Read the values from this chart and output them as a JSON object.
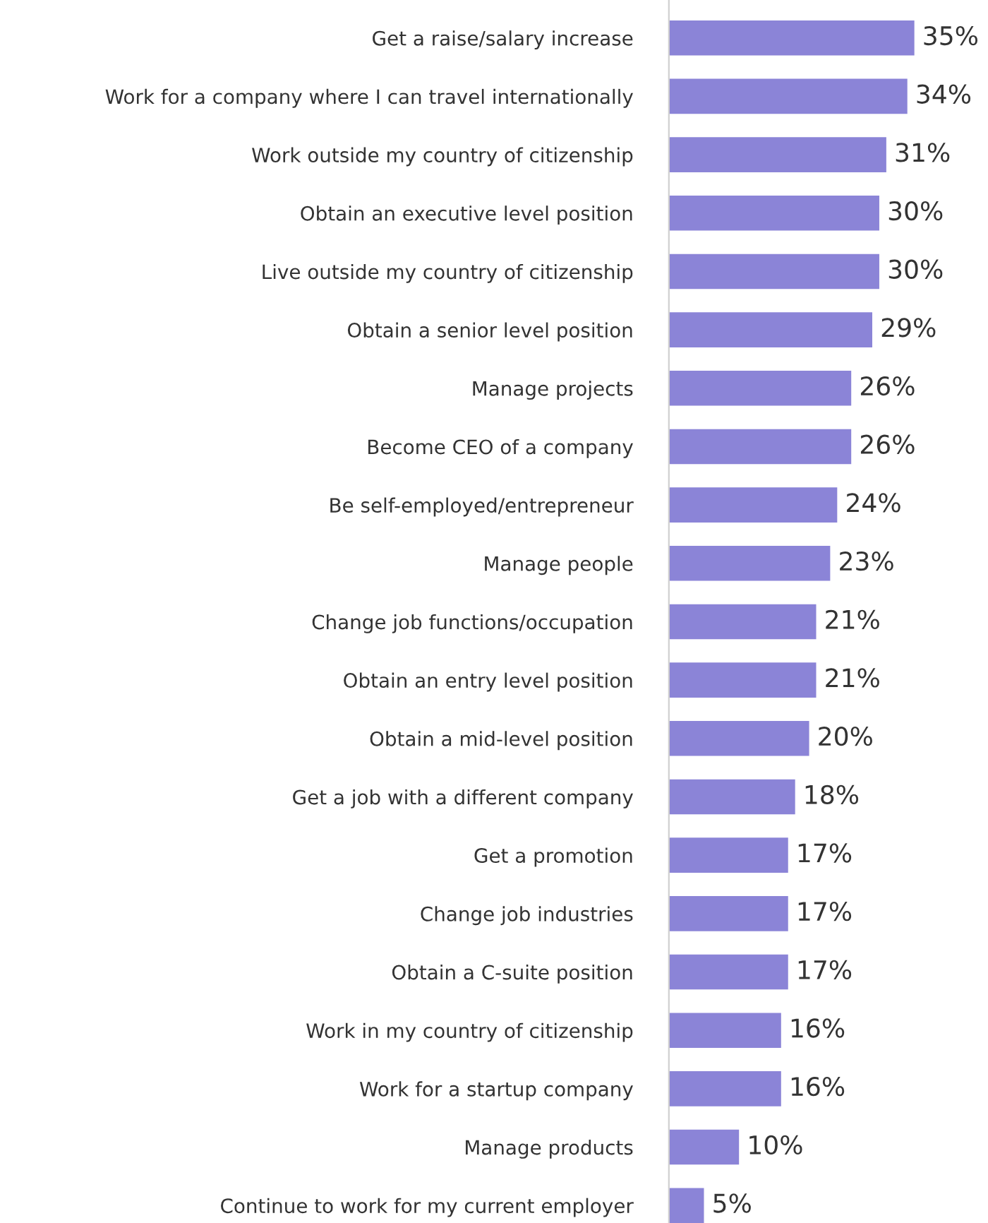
{
  "chart_data": {
    "type": "bar",
    "orientation": "horizontal",
    "categories": [
      "Get a raise/salary increase",
      "Work for a company where I can travel internationally",
      "Work outside my country of citizenship",
      "Obtain an executive level position",
      "Live outside my country of citizenship",
      "Obtain a senior level position",
      "Manage projects",
      "Become CEO of a company",
      "Be self-employed/entrepreneur",
      "Manage people",
      "Change job functions/occupation",
      "Obtain an entry level position",
      "Obtain a mid-level position",
      "Get a job with a different company",
      "Get a promotion",
      "Change job industries",
      "Obtain a C-suite position",
      "Work in my country of citizenship",
      "Work for a startup company",
      "Manage products",
      "Continue to work for my current employer"
    ],
    "values": [
      35,
      34,
      31,
      30,
      30,
      29,
      26,
      26,
      24,
      23,
      21,
      21,
      20,
      18,
      17,
      17,
      17,
      16,
      16,
      10,
      5
    ],
    "value_labels": [
      "35%",
      "34%",
      "31%",
      "30%",
      "30%",
      "29%",
      "26%",
      "26%",
      "24%",
      "23%",
      "21%",
      "21%",
      "20%",
      "18%",
      "17%",
      "17%",
      "17%",
      "16%",
      "16%",
      "10%",
      "5%"
    ],
    "color": "#8b84d7",
    "grid": false,
    "legend": false
  }
}
